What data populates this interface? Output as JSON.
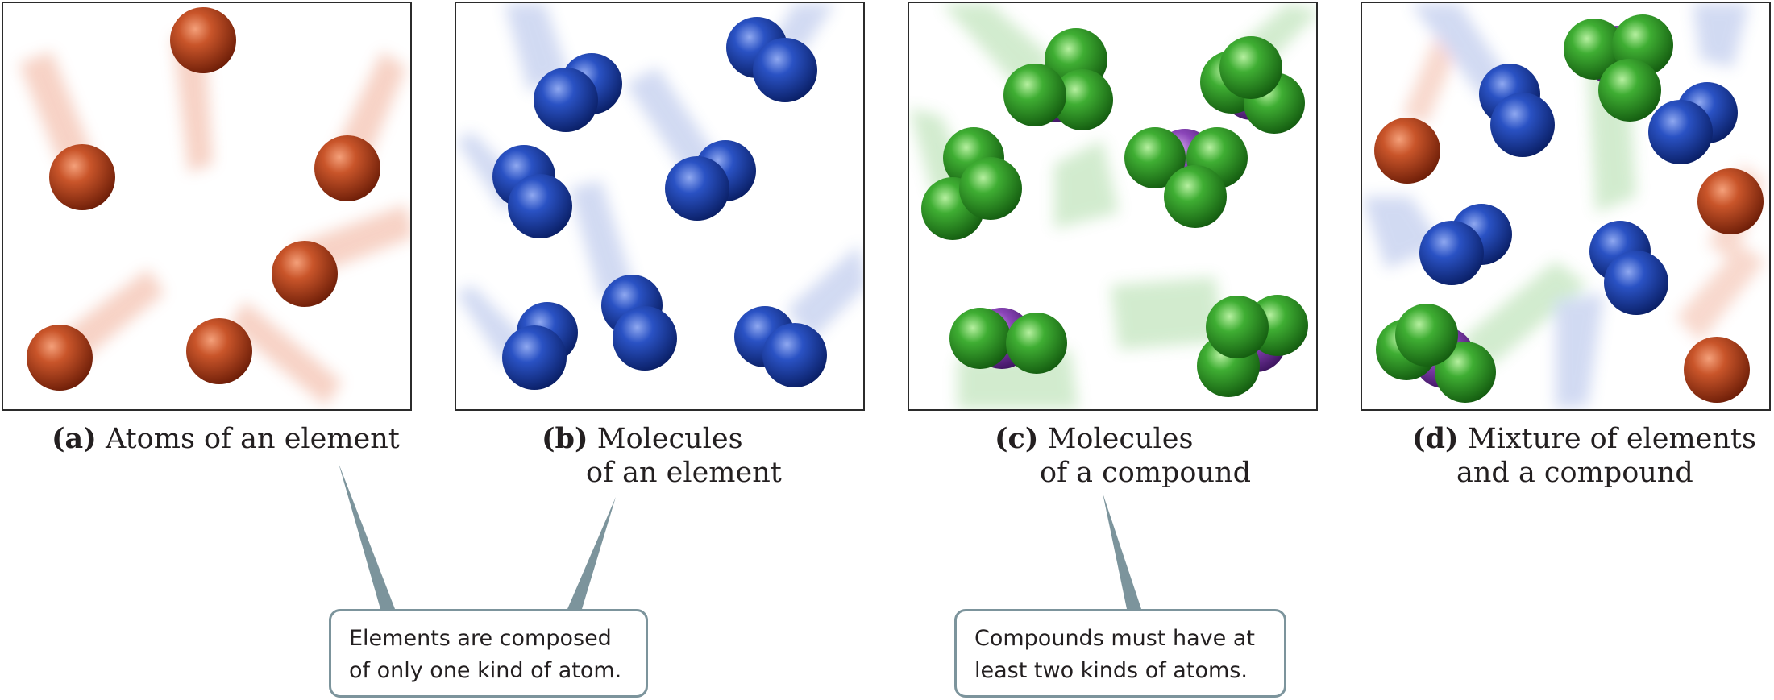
{
  "panels": [
    {
      "letter": "(a)",
      "lines": [
        "Atoms of an element"
      ]
    },
    {
      "letter": "(b)",
      "lines": [
        "Molecules",
        "of an element"
      ]
    },
    {
      "letter": "(c)",
      "lines": [
        "Molecules",
        "of a compound"
      ]
    },
    {
      "letter": "(d)",
      "lines": [
        "Mixture of elements",
        "and a compound"
      ]
    }
  ],
  "callouts": {
    "elements": [
      "Elements are composed",
      "of only one kind of atom."
    ],
    "compounds": [
      "Compounds must have at",
      "least two kinds of atoms."
    ]
  },
  "colors": {
    "atom_red": "#b8401c",
    "atom_blue": "#1b3fa6",
    "atom_green": "#2f9a2a",
    "atom_purple": "#7b3fa6",
    "callout_border": "#7c949c"
  }
}
